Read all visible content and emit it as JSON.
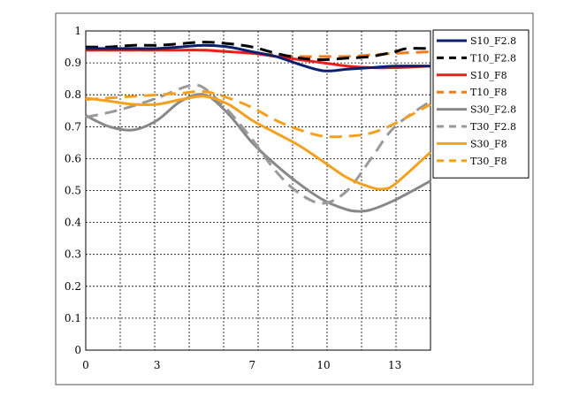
{
  "chart_data": {
    "type": "line",
    "title": "",
    "xlabel": "",
    "ylabel": "",
    "xlim": [
      0,
      14.5
    ],
    "ylim": [
      0,
      1
    ],
    "grid": true,
    "legend_position": "right",
    "xticks": [
      0,
      3,
      7,
      10,
      13
    ],
    "yticks": [
      0,
      0.1,
      0.2,
      0.3,
      0.4,
      0.5,
      0.6,
      0.7,
      0.8,
      0.9,
      1
    ],
    "ytick_labels": [
      "0",
      "0.1",
      "0.2",
      "0.3",
      "0.4",
      "0.5",
      "0.6",
      "0.7",
      "0.8",
      "0.9",
      "1"
    ],
    "series": [
      {
        "name": "S10_F2.8",
        "color": "#0a1f6e",
        "dash": "solid",
        "x": [
          0,
          1,
          2,
          3,
          4,
          5,
          6,
          7,
          8,
          9,
          10,
          11,
          12,
          13,
          14.5
        ],
        "y": [
          0.945,
          0.945,
          0.945,
          0.945,
          0.95,
          0.955,
          0.95,
          0.935,
          0.92,
          0.895,
          0.875,
          0.88,
          0.885,
          0.89,
          0.89
        ]
      },
      {
        "name": "T10_F2.8",
        "color": "#000000",
        "dash": "dash",
        "x": [
          0,
          1,
          2,
          3,
          4,
          5,
          6,
          7,
          8,
          9,
          10,
          11,
          12,
          13,
          13.5,
          14.5
        ],
        "y": [
          0.95,
          0.95,
          0.955,
          0.955,
          0.96,
          0.965,
          0.96,
          0.95,
          0.93,
          0.915,
          0.91,
          0.915,
          0.92,
          0.935,
          0.945,
          0.945
        ]
      },
      {
        "name": "S10_F8",
        "color": "#ee1c1c",
        "dash": "solid",
        "x": [
          0,
          1,
          2,
          3,
          4,
          5,
          6,
          7,
          8,
          9,
          10,
          11,
          12,
          13,
          14.5
        ],
        "y": [
          0.94,
          0.94,
          0.94,
          0.94,
          0.94,
          0.94,
          0.935,
          0.93,
          0.92,
          0.91,
          0.9,
          0.89,
          0.885,
          0.885,
          0.89
        ]
      },
      {
        "name": "T10_F8",
        "color": "#f07c1c",
        "dash": "dash",
        "x": [
          0,
          1,
          2,
          3,
          4,
          5,
          6,
          7,
          8,
          9,
          10,
          11,
          12,
          13,
          14.5
        ],
        "y": [
          0.94,
          0.94,
          0.94,
          0.94,
          0.94,
          0.94,
          0.935,
          0.93,
          0.925,
          0.92,
          0.92,
          0.92,
          0.925,
          0.93,
          0.935
        ]
      },
      {
        "name": "S30_F2.8",
        "color": "#888888",
        "dash": "solid",
        "x": [
          0,
          1,
          2,
          3,
          4,
          5,
          6,
          7,
          8,
          9,
          10,
          11,
          11.5,
          12,
          13,
          14.5
        ],
        "y": [
          0.735,
          0.7,
          0.69,
          0.72,
          0.78,
          0.8,
          0.74,
          0.65,
          0.58,
          0.52,
          0.47,
          0.44,
          0.435,
          0.44,
          0.47,
          0.53
        ]
      },
      {
        "name": "T30_F2.8",
        "color": "#999999",
        "dash": "dash",
        "x": [
          0,
          1,
          2,
          3,
          4,
          4.5,
          5,
          6,
          7,
          8,
          9,
          10,
          11,
          12,
          13,
          14.5
        ],
        "y": [
          0.73,
          0.745,
          0.765,
          0.79,
          0.82,
          0.83,
          0.82,
          0.75,
          0.66,
          0.56,
          0.49,
          0.46,
          0.5,
          0.6,
          0.7,
          0.78
        ]
      },
      {
        "name": "S30_F8",
        "color": "#f5a01e",
        "dash": "solid",
        "x": [
          0,
          1,
          2,
          3,
          4,
          5,
          6,
          7,
          8,
          9,
          10,
          11,
          12,
          12.5,
          13,
          14.5
        ],
        "y": [
          0.79,
          0.78,
          0.77,
          0.77,
          0.785,
          0.795,
          0.77,
          0.72,
          0.68,
          0.64,
          0.59,
          0.54,
          0.51,
          0.505,
          0.52,
          0.62
        ]
      },
      {
        "name": "T30_F8",
        "color": "#f5a01e",
        "dash": "dash",
        "x": [
          0,
          1,
          2,
          3,
          4,
          5,
          6,
          7,
          8,
          9,
          10,
          11,
          12,
          13,
          14.5
        ],
        "y": [
          0.785,
          0.79,
          0.795,
          0.8,
          0.805,
          0.81,
          0.79,
          0.76,
          0.72,
          0.69,
          0.67,
          0.67,
          0.68,
          0.71,
          0.77
        ]
      }
    ]
  }
}
